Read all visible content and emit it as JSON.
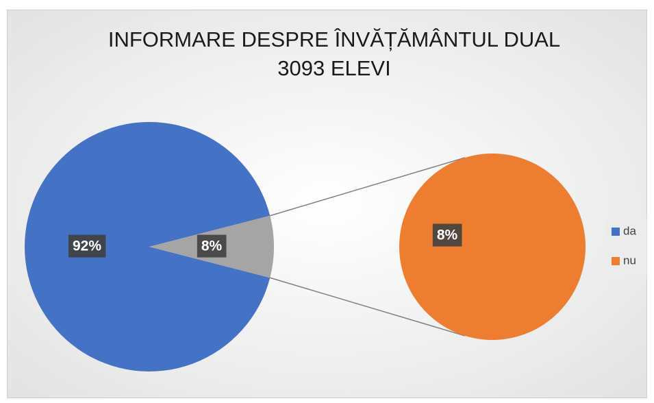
{
  "chart_data": {
    "type": "pie-of-pie",
    "title": "INFORMARE DESPRE ÎNVĂȚĂMÂNTUL DUAL",
    "subtitle": "3093 ELEVI",
    "categories": [
      "da",
      "nu"
    ],
    "values": [
      92,
      8
    ],
    "value_labels": [
      "92%",
      "8%"
    ],
    "colors": [
      "#4472c4",
      "#ed7d31"
    ],
    "other_color": "#a5a5a5",
    "legend": "right"
  }
}
